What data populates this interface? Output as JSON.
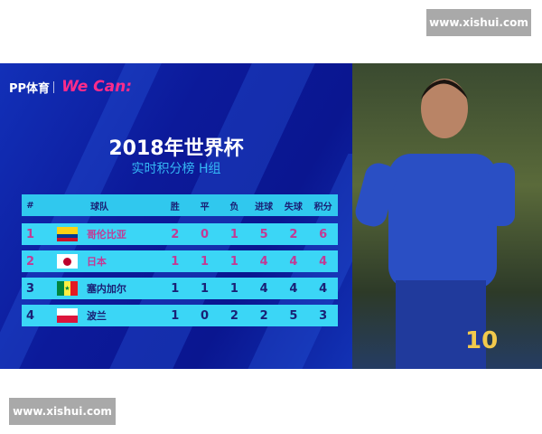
{
  "watermark": "www.xishui.com",
  "logo": {
    "brand": "PP体育",
    "campaign": "We Can:"
  },
  "title": "2018年世界杯",
  "subtitle": "实时积分榜  H组",
  "headers": [
    "#",
    "球队",
    "胜",
    "平",
    "负",
    "进球",
    "失球",
    "积分"
  ],
  "rows": [
    {
      "rank": "1",
      "team": "哥伦比亚",
      "flag": "colombia",
      "w": "2",
      "d": "0",
      "l": "1",
      "gf": "5",
      "ga": "2",
      "pts": "6",
      "highlight": true
    },
    {
      "rank": "2",
      "team": "日本",
      "flag": "japan",
      "w": "1",
      "d": "1",
      "l": "1",
      "gf": "4",
      "ga": "4",
      "pts": "4",
      "highlight": true
    },
    {
      "rank": "3",
      "team": "塞内加尔",
      "flag": "senegal",
      "w": "1",
      "d": "1",
      "l": "1",
      "gf": "4",
      "ga": "4",
      "pts": "4",
      "highlight": false
    },
    {
      "rank": "4",
      "team": "波兰",
      "flag": "poland",
      "w": "1",
      "d": "0",
      "l": "2",
      "gf": "2",
      "ga": "5",
      "pts": "3",
      "highlight": false
    }
  ],
  "colors": {
    "background": "#0c1a9a",
    "row": "#3bd6f6",
    "qualified_text": "#c23a95",
    "text": "#1a2075"
  }
}
